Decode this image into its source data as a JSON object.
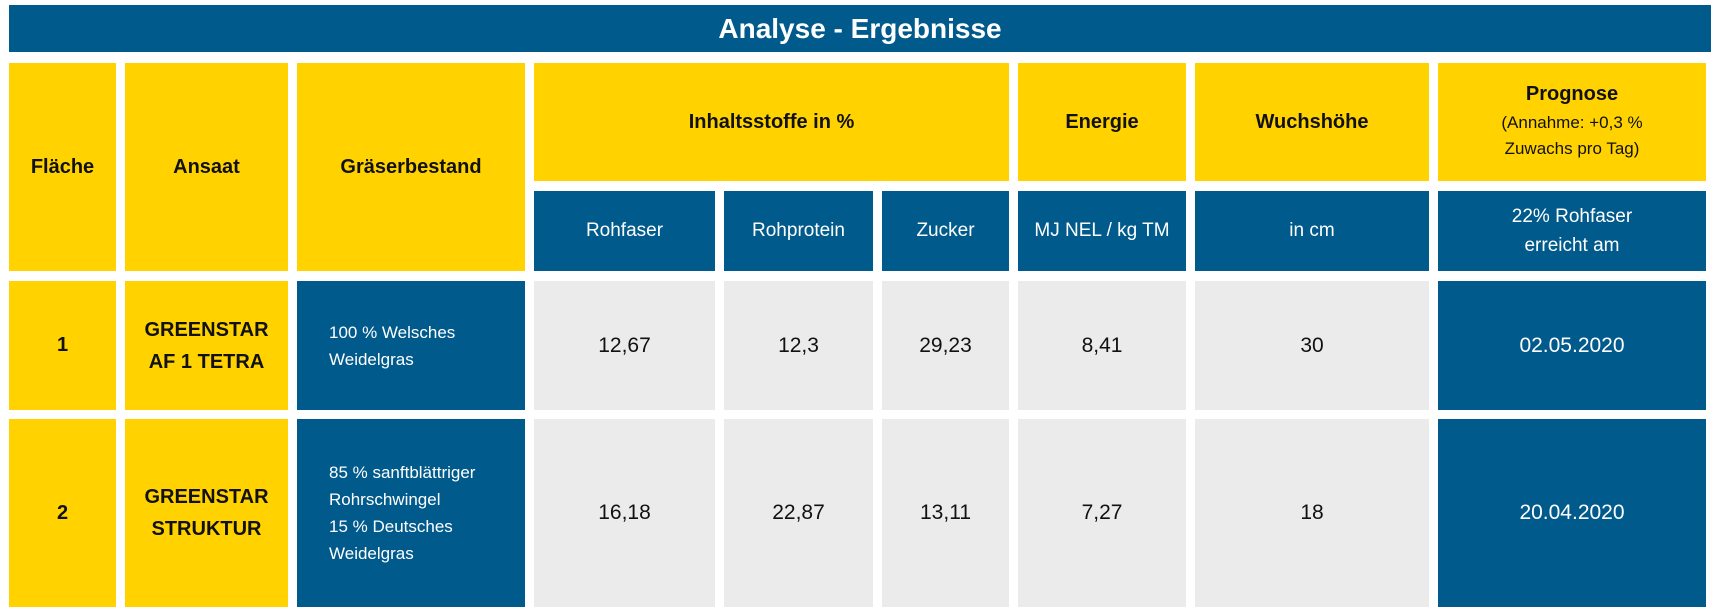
{
  "title": "Analyse - Ergebnisse",
  "header": {
    "flaeche": "Fläche",
    "ansaat": "Ansaat",
    "graeserbestand": "Gräserbestand",
    "inhaltsstoffe": "Inhaltsstoffe in %",
    "energie": "Energie",
    "wuchshoehe": "Wuchshöhe",
    "prognose": "Prognose",
    "prognose_note": [
      "(Annahme: +0,3 %",
      "Zuwachs pro Tag)"
    ]
  },
  "subheader": {
    "rohfaser": "Rohfaser",
    "rohprotein": "Rohprotein",
    "zucker": "Zucker",
    "energie_unit": "MJ NEL / kg TM",
    "wuchshoehe_unit": "in cm",
    "prognose_unit": [
      "22% Rohfaser",
      "erreicht am"
    ]
  },
  "rows": [
    {
      "flaeche": "1",
      "ansaat": [
        "GREENSTAR",
        "AF 1 TETRA"
      ],
      "graeserbestand": [
        "100 % Welsches",
        "Weidelgras"
      ],
      "rohfaser": "12,67",
      "rohprotein": "12,3",
      "zucker": "29,23",
      "energie": "8,41",
      "wuchshoehe": "30",
      "prognose": "02.05.2020"
    },
    {
      "flaeche": "2",
      "ansaat": [
        "GREENSTAR",
        "STRUKTUR"
      ],
      "graeserbestand": [
        "85 % sanftblättriger",
        "Rohrschwingel",
        "15 % Deutsches",
        "Weidelgras"
      ],
      "rohfaser": "16,18",
      "rohprotein": "22,87",
      "zucker": "13,11",
      "energie": "7,27",
      "wuchshoehe": "18",
      "prognose": "20.04.2020"
    }
  ],
  "colors": {
    "blue": "#005A8C",
    "yellow": "#FFD200",
    "grey": "#EBEBEB"
  }
}
